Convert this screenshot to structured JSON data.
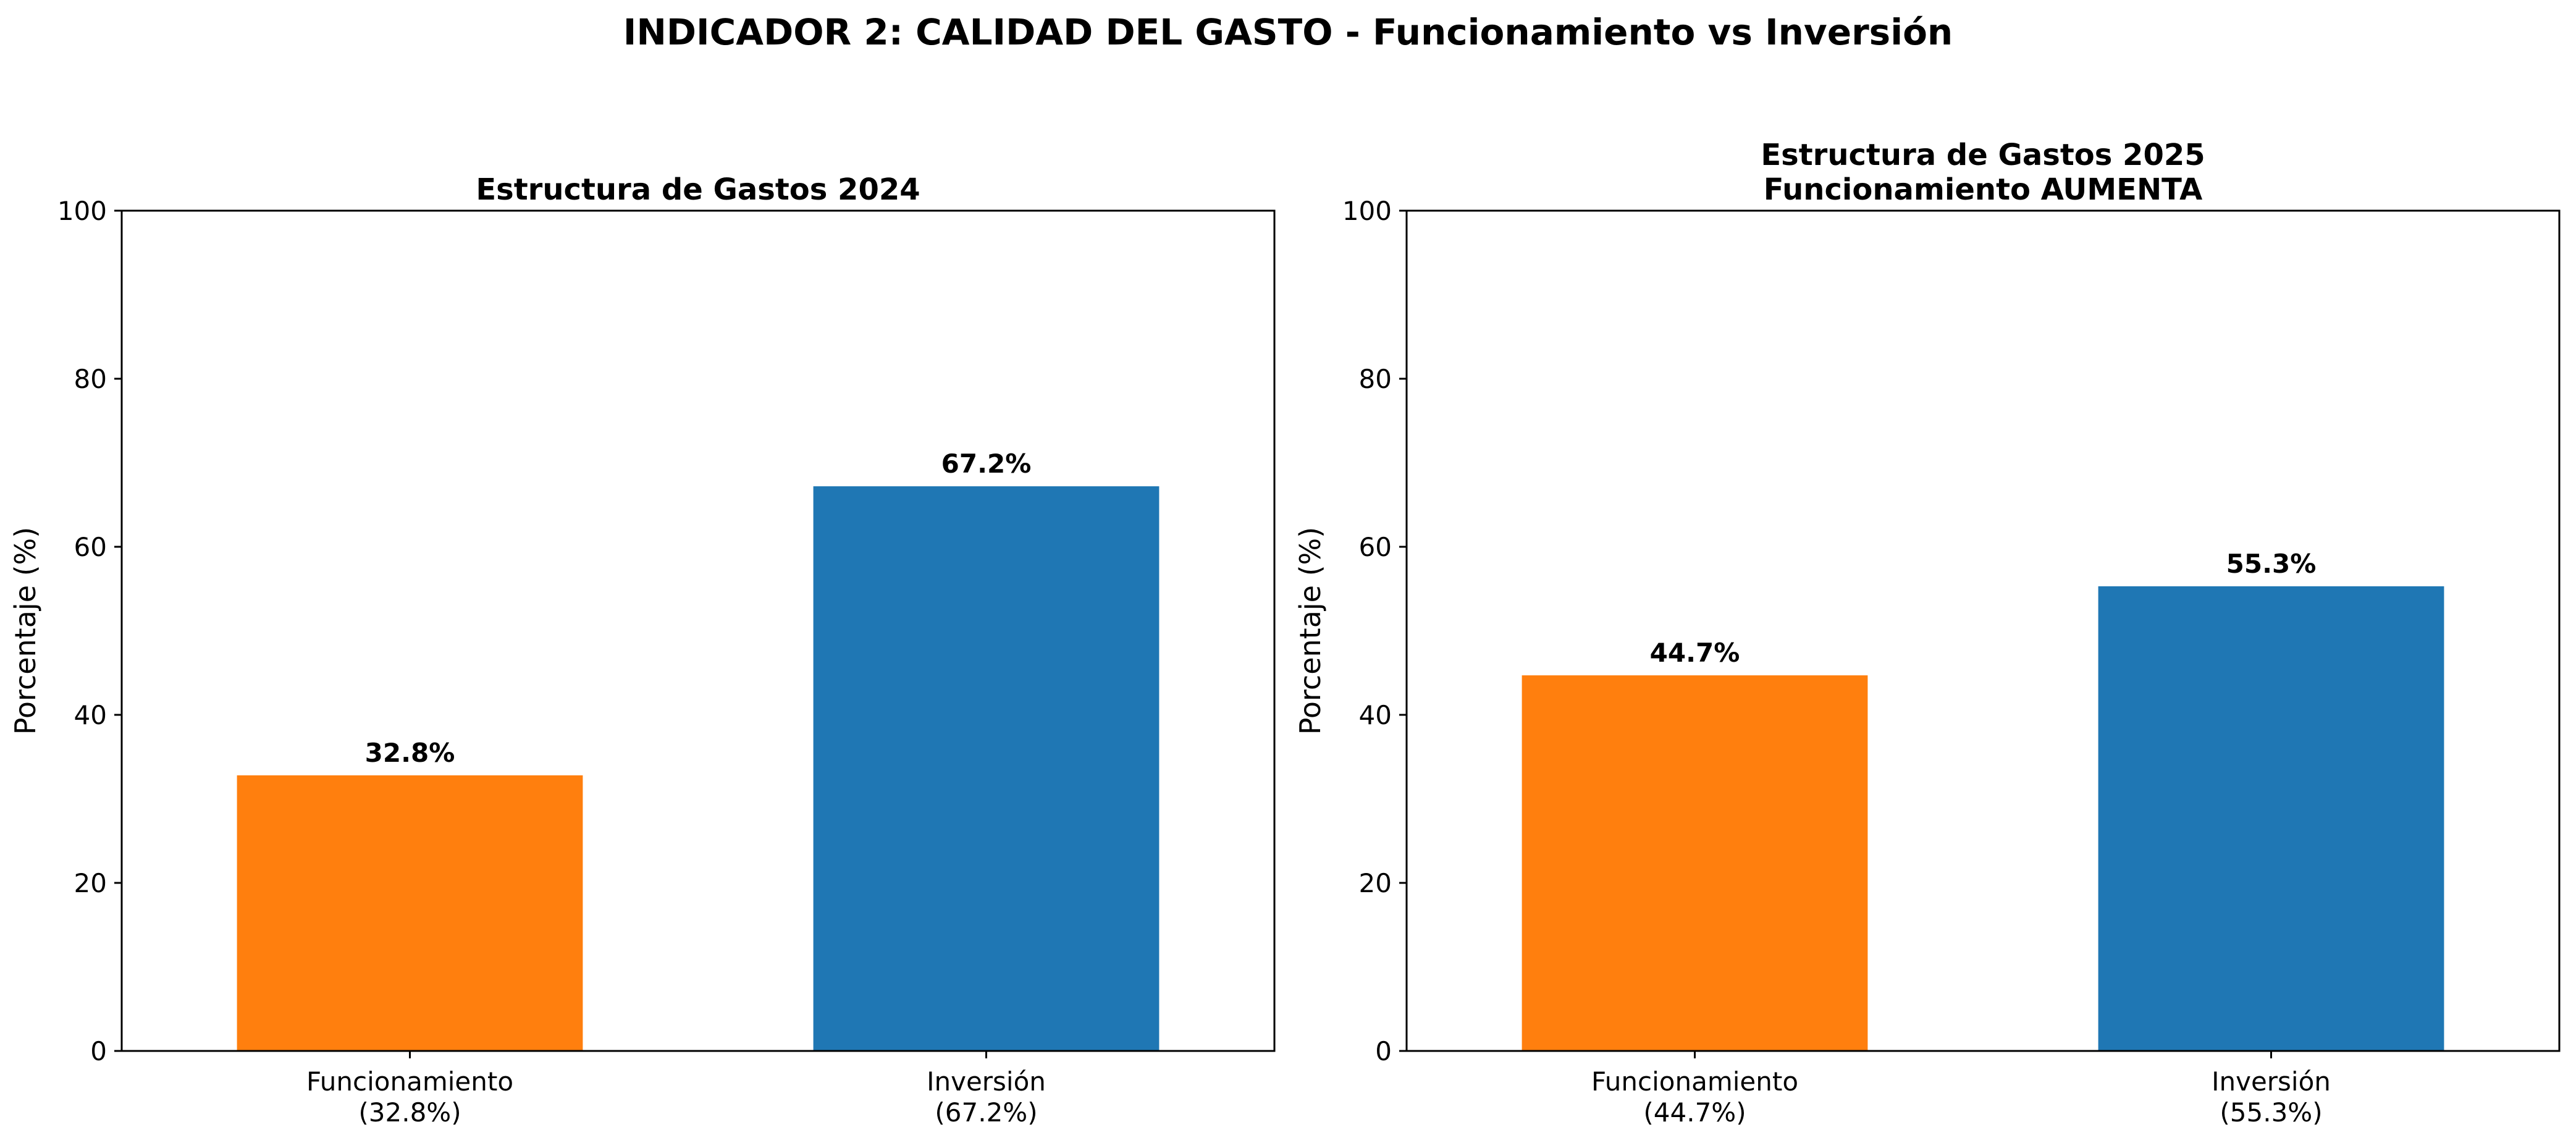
{
  "suptitle": "INDICADOR 2: CALIDAD DEL GASTO - Funcionamiento vs Inversión",
  "chart_data": [
    {
      "type": "bar",
      "title": [
        "Estructura de Gastos 2024"
      ],
      "categories": [
        "Funcionamiento\n(32.8%)",
        "Inversión\n(67.2%)"
      ],
      "values": [
        32.8,
        67.2
      ],
      "value_labels": [
        "32.8%",
        "67.2%"
      ],
      "colors": [
        "#ff7f0e",
        "#1f77b4"
      ],
      "xlabel": "",
      "ylabel": "Porcentaje (%)",
      "ylim": [
        0,
        100
      ],
      "yticks": [
        0,
        20,
        40,
        60,
        80,
        100
      ],
      "grid": false
    },
    {
      "type": "bar",
      "title": [
        "Estructura de Gastos 2025",
        "Funcionamiento AUMENTA"
      ],
      "categories": [
        "Funcionamiento\n(44.7%)",
        "Inversión\n(55.3%)"
      ],
      "values": [
        44.7,
        55.3
      ],
      "value_labels": [
        "44.7%",
        "55.3%"
      ],
      "colors": [
        "#ff7f0e",
        "#1f77b4"
      ],
      "xlabel": "",
      "ylabel": "Porcentaje (%)",
      "ylim": [
        0,
        100
      ],
      "yticks": [
        0,
        20,
        40,
        60,
        80,
        100
      ],
      "grid": false
    }
  ]
}
